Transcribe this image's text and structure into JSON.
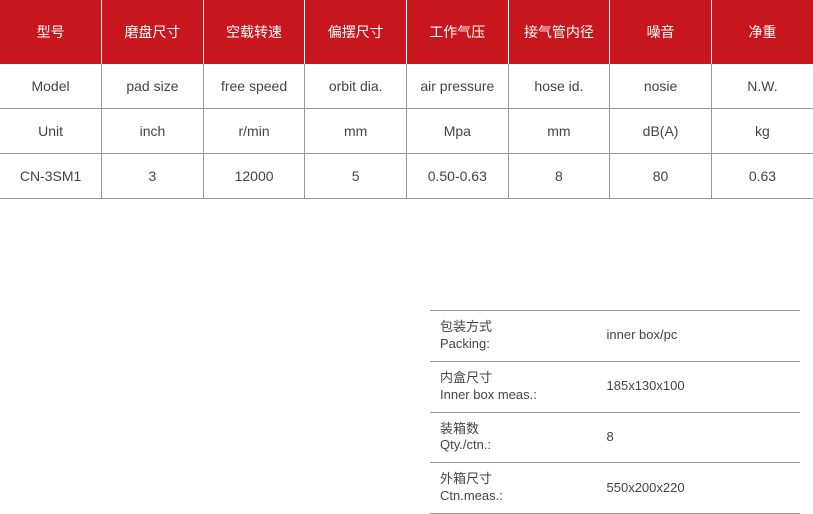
{
  "colors": {
    "header_bg": "#c7161e",
    "header_text": "#ffffff",
    "body_text": "#444444",
    "border": "#999999",
    "page_bg": "#ffffff"
  },
  "spec_table": {
    "type": "table",
    "column_count": 8,
    "header_fontsize": 14,
    "cell_fontsize": 14,
    "headers": [
      "型号",
      "磨盘尺寸",
      "空载转速",
      "偏摆尺寸",
      "工作气压",
      "接气管内径",
      "噪音",
      "净重"
    ],
    "rows": [
      [
        "Model",
        "pad size",
        "free speed",
        "orbit dia.",
        "air pressure",
        "hose id.",
        "nosie",
        "N.W."
      ],
      [
        "Unit",
        "inch",
        "r/min",
        "mm",
        "Mpa",
        "mm",
        "dB(A)",
        "kg"
      ],
      [
        "CN-3SM1",
        "3",
        "12000",
        "5",
        "0.50-0.63",
        "8",
        "80",
        "0.63"
      ]
    ]
  },
  "packing_table": {
    "type": "table",
    "label_fontsize": 13,
    "rows": [
      {
        "label_cn": "包装方式",
        "label_en": "Packing:",
        "value": "inner box/pc"
      },
      {
        "label_cn": "内盒尺寸",
        "label_en": "Inner box meas.:",
        "value": "185x130x100"
      },
      {
        "label_cn": "装箱数",
        "label_en": "Qty./ctn.:",
        "value": "8"
      },
      {
        "label_cn": "外箱尺寸",
        "label_en": "Ctn.meas.:",
        "value": "550x200x220"
      }
    ]
  }
}
